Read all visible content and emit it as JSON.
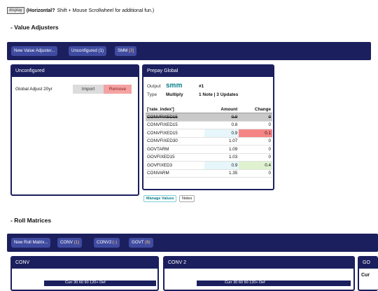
{
  "topline": {
    "mini_button": "display",
    "bold_text": "(Horizontal?",
    "rest_text": " Shift + Mouse Scrollwheel for additional fun.)"
  },
  "value_adjusters": {
    "section_title": "- Value Adjusters",
    "nav": [
      {
        "label": "New Value Adjuster...",
        "count": ""
      },
      {
        "label": "Unconfigured (1)",
        "count": ""
      },
      {
        "label": "SMM ",
        "count": "[3]"
      }
    ],
    "unconfigured_panel": {
      "title": "Unconfigured",
      "item_label": "Global Adjust 20yr",
      "import_label": "Import",
      "remove_label": "Remove"
    },
    "prepay_panel": {
      "title": "Prepay Global",
      "output_label": "Output",
      "output_value": "smm",
      "output_index": "#1",
      "type_label": "Type",
      "type_value": "Multiply",
      "type_notes": "1 Note | 3 Updates",
      "table_headers": {
        "index": "['rate_index']",
        "amount": "Amount",
        "change": "Change"
      },
      "rows": [
        {
          "index": "CONVFIXED15",
          "amount": "0.9",
          "change": "0",
          "struck": true,
          "amount_hl": false,
          "change_hl": ""
        },
        {
          "index": "CONVFIXED15",
          "amount": "0.8",
          "change": "0",
          "struck": false,
          "amount_hl": false,
          "change_hl": ""
        },
        {
          "index": "CONVFIXED15",
          "amount": "0.9",
          "change": "0.1",
          "struck": false,
          "amount_hl": true,
          "change_hl": "neg"
        },
        {
          "index": "CONVFIXED30",
          "amount": "1.07",
          "change": "0",
          "struck": false,
          "amount_hl": false,
          "change_hl": ""
        },
        {
          "index": "GOVTARM",
          "amount": "1.09",
          "change": "0",
          "struck": false,
          "amount_hl": false,
          "change_hl": ""
        },
        {
          "index": "GOVFIXED15",
          "amount": "1.03",
          "change": "0",
          "struck": false,
          "amount_hl": false,
          "change_hl": ""
        },
        {
          "index": "GOVFIXED3",
          "amount": "0.9",
          "change": "0.4",
          "struck": false,
          "amount_hl": true,
          "change_hl": "pos"
        },
        {
          "index": "CONVARM",
          "amount": "1.35",
          "change": "0",
          "struck": false,
          "amount_hl": false,
          "change_hl": ""
        }
      ],
      "tab_manage": "Manage Values",
      "tab_notes": "Notes"
    }
  },
  "roll_matrices": {
    "section_title": "- Roll Matrices",
    "nav": [
      {
        "label": "New Roll Matrix...",
        "count": ""
      },
      {
        "label": "CONV ",
        "count": "(1)"
      },
      {
        "label": "CONV2:",
        "count": "(-)"
      },
      {
        "label": "GOVT ",
        "count": "(6)"
      }
    ],
    "panels": [
      {
        "title": "CONV",
        "col_header": "Curr    30    60    90    120+  Def"
      },
      {
        "title": "CONV 2",
        "col_header": "Curr    30    60    90    120+  Def"
      },
      {
        "title": "GO",
        "subtext": "Cur"
      }
    ]
  },
  "colors": {
    "navy": "#1b1f5e",
    "nav_button": "#3f4ba0",
    "teal_accent": "#0a7f89",
    "negative": "#f58585",
    "positive": "#dff2cf"
  }
}
